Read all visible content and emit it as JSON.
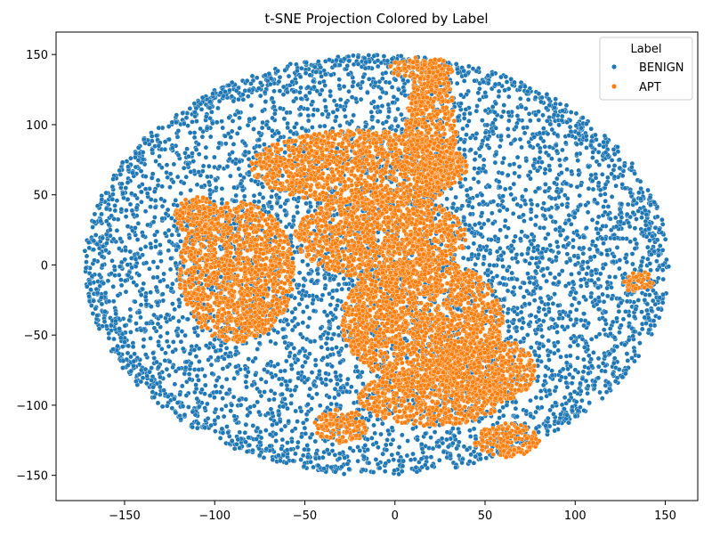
{
  "chart_data": {
    "type": "scatter",
    "title": "t-SNE Projection Colored by Label",
    "xlabel": "",
    "ylabel": "",
    "xlim": [
      -188,
      168
    ],
    "ylim": [
      -168,
      166
    ],
    "xticks": [
      -150,
      -100,
      -50,
      0,
      50,
      100,
      150
    ],
    "yticks": [
      -150,
      -100,
      -50,
      0,
      50,
      100,
      150
    ],
    "xtick_labels": [
      "−150",
      "−100",
      "−50",
      "0",
      "50",
      "100",
      "150"
    ],
    "ytick_labels": [
      "−150",
      "−100",
      "−50",
      "0",
      "50",
      "100",
      "150"
    ],
    "grid": false,
    "legend": {
      "title": "Label",
      "placement": "top-right",
      "entries": [
        "BENIGN",
        "APT"
      ]
    },
    "series": [
      {
        "name": "BENIGN",
        "color": "#1f77b4",
        "description_regions": {
          "main_cloud": {
            "cx": -10,
            "cy": 0,
            "rx": 162,
            "ry": 150
          },
          "outlier_points": [
            [
              -172,
              10
            ],
            [
              -168,
              -8
            ],
            [
              -165,
              -20
            ],
            [
              -160,
              40
            ],
            [
              -158,
              25
            ],
            [
              -155,
              -40
            ],
            [
              -152,
              55
            ],
            [
              -150,
              -55
            ],
            [
              -148,
              70
            ],
            [
              -145,
              -72
            ]
          ]
        }
      },
      {
        "name": "APT",
        "color": "#ff7f0e",
        "description_regions": {
          "clusters": [
            {
              "cx": -88,
              "cy": -5,
              "rx": 32,
              "ry": 50
            },
            {
              "cx": -110,
              "cy": 35,
              "rx": 12,
              "ry": 14
            },
            {
              "cx": 20,
              "cy": 95,
              "rx": 14,
              "ry": 50
            },
            {
              "cx": 15,
              "cy": 140,
              "rx": 18,
              "ry": 8
            },
            {
              "cx": -8,
              "cy": 20,
              "rx": 48,
              "ry": 30
            },
            {
              "cx": -20,
              "cy": 70,
              "rx": 60,
              "ry": 26
            },
            {
              "cx": 15,
              "cy": -40,
              "rx": 45,
              "ry": 45
            },
            {
              "cx": 50,
              "cy": -75,
              "rx": 28,
              "ry": 24
            },
            {
              "cx": 20,
              "cy": -95,
              "rx": 40,
              "ry": 20
            },
            {
              "cx": 62,
              "cy": -125,
              "rx": 18,
              "ry": 12
            },
            {
              "cx": 135,
              "cy": -13,
              "rx": 8,
              "ry": 9
            },
            {
              "cx": -30,
              "cy": -115,
              "rx": 15,
              "ry": 12
            }
          ]
        }
      }
    ]
  }
}
